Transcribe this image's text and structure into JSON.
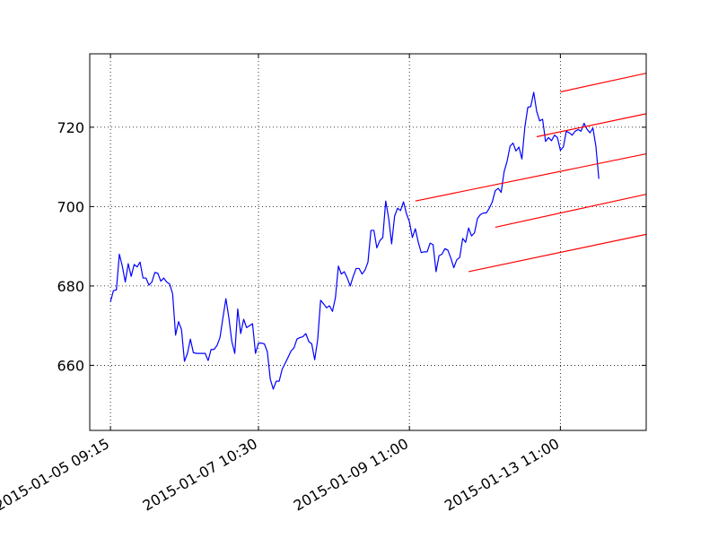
{
  "chart_data": {
    "type": "line",
    "title": "",
    "xlabel": "",
    "ylabel": "",
    "x_axis": {
      "kind": "category-index",
      "range": [
        -7,
        181
      ],
      "ticks": [
        {
          "index": 0,
          "label": "2015-01-05 09:15"
        },
        {
          "index": 50,
          "label": "2015-01-07 10:30"
        },
        {
          "index": 101,
          "label": "2015-01-09 11:00"
        },
        {
          "index": 152,
          "label": "2015-01-13 11:00"
        }
      ]
    },
    "y_axis": {
      "range": [
        643.6,
        738.5
      ],
      "ticks": [
        {
          "value": 660,
          "label": "660"
        },
        {
          "value": 680,
          "label": "680"
        },
        {
          "value": 700,
          "label": "700"
        },
        {
          "value": 720,
          "label": "720"
        }
      ]
    },
    "grid": true,
    "series": [
      {
        "color": "#0000ff",
        "values": [
          676.0,
          678.8,
          679.0,
          688.0,
          685.0,
          681.0,
          685.6,
          682.4,
          685.4,
          684.8,
          686.0,
          682.0,
          682.0,
          680.2,
          681.0,
          683.4,
          683.2,
          681.2,
          682.0,
          681.0,
          680.5,
          678.0,
          667.6,
          671.0,
          669.0,
          661.0,
          663.0,
          666.6,
          663.2,
          663.0,
          663.0,
          663.0,
          663.0,
          661.2,
          664.0,
          664.0,
          665.0,
          667.0,
          672.0,
          676.8,
          672.0,
          666.0,
          663.0,
          674.2,
          668.0,
          671.6,
          669.5,
          670.0,
          670.5,
          663.0,
          665.6,
          665.6,
          665.4,
          663.4,
          656.5,
          654.0,
          656.0,
          656.0,
          659.0,
          660.5,
          662.0,
          663.6,
          664.4,
          666.6,
          667.0,
          667.2,
          668.0,
          666.0,
          665.4,
          661.4,
          666.4,
          676.4,
          675.5,
          674.5,
          675.0,
          673.6,
          677.0,
          685.0,
          683.0,
          683.6,
          682.0,
          680.0,
          682.4,
          684.4,
          684.4,
          683.0,
          684.0,
          686.0,
          694.0,
          694.0,
          689.6,
          691.4,
          692.2,
          701.4,
          697.0,
          690.6,
          697.6,
          699.6,
          699.0,
          701.2,
          698.2,
          696.2,
          692.2,
          694.4,
          691.0,
          688.4,
          688.6,
          688.6,
          690.8,
          690.4,
          683.6,
          687.6,
          688.0,
          689.4,
          689.0,
          687.0,
          684.6,
          686.6,
          687.2,
          692.0,
          691.0,
          694.6,
          692.6,
          693.4,
          697.0,
          698.0,
          698.4,
          698.4,
          699.6,
          701.2,
          704.0,
          704.6,
          703.6,
          708.8,
          711.4,
          715.2,
          716.0,
          714.0,
          715.0,
          712.0,
          720.0,
          725.0,
          725.2,
          728.8,
          724.0,
          721.6,
          722.0,
          716.4,
          717.4,
          716.6,
          718.0,
          717.4,
          714.2,
          715.0,
          719.0,
          718.6,
          718.0,
          719.0,
          719.4,
          719.0,
          721.0,
          719.5,
          718.6,
          719.8,
          715.2,
          707.0
        ]
      }
    ],
    "channel_lines": [
      {
        "color": "#ff0000",
        "x": [
          103,
          181
        ],
        "y": [
          701.4,
          713.3
        ]
      },
      {
        "color": "#ff0000",
        "x": [
          121,
          181
        ],
        "y": [
          683.6,
          693.0
        ]
      },
      {
        "color": "#ff0000",
        "x": [
          130,
          181
        ],
        "y": [
          694.8,
          703.1
        ]
      },
      {
        "color": "#ff0000",
        "x": [
          144,
          181
        ],
        "y": [
          717.6,
          723.4
        ]
      },
      {
        "color": "#ff0000",
        "x": [
          152,
          181
        ],
        "y": [
          728.9,
          733.6
        ]
      }
    ],
    "colors": {
      "axes": "#000000",
      "grid": "#000000",
      "background": "#ffffff"
    }
  }
}
